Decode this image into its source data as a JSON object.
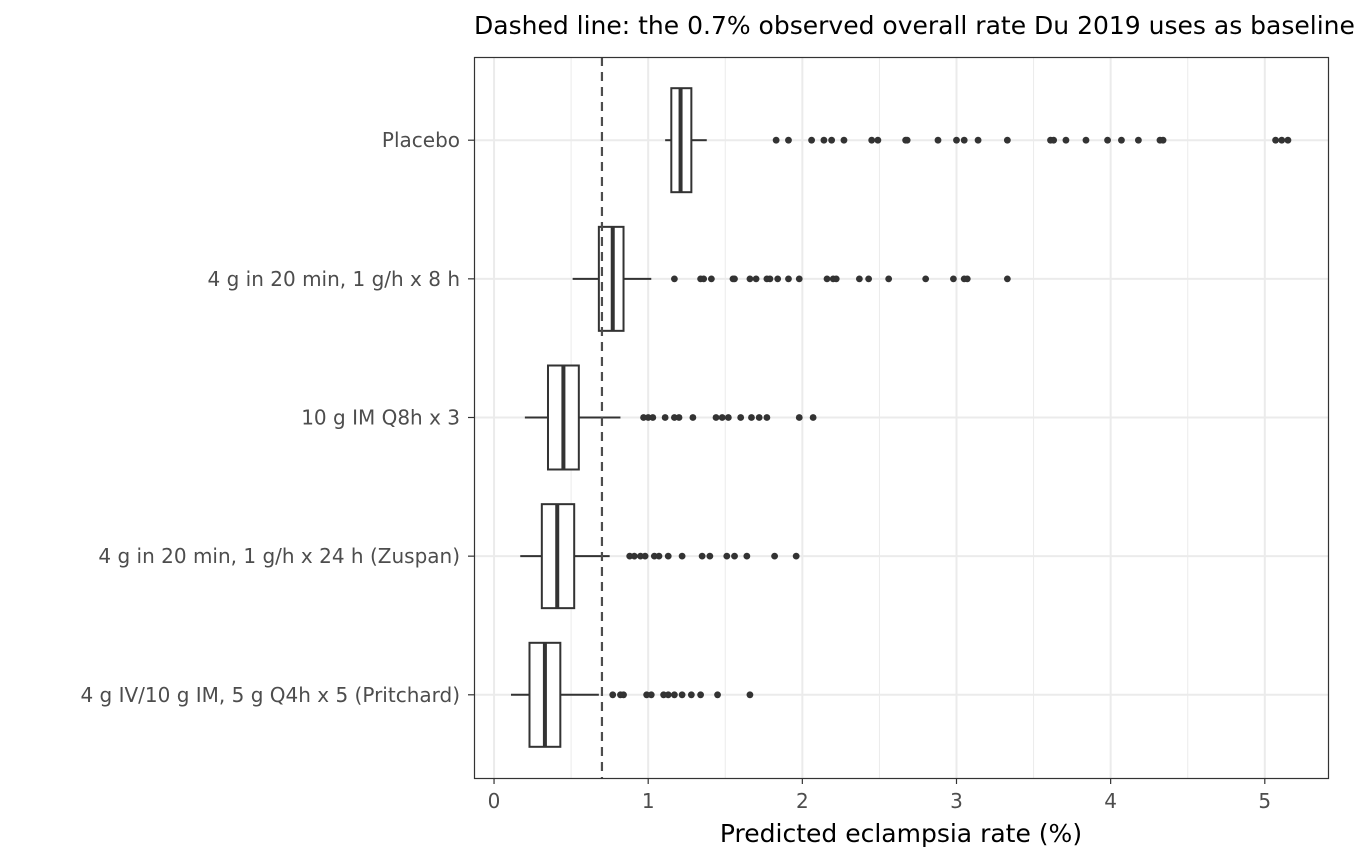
{
  "chart_data": {
    "type": "boxplot",
    "orientation": "horizontal",
    "title": "Dashed line: the 0.7% observed overall rate Du 2019 uses as baseline",
    "xlabel": "Predicted eclampsia rate (%)",
    "ylabel": "",
    "xlim": [
      -0.13,
      5.41
    ],
    "xticks": [
      0,
      1,
      2,
      3,
      4,
      5
    ],
    "reference_line": {
      "x": 0.7,
      "style": "dashed"
    },
    "grid": true,
    "colors": {
      "box_fill": "#ffffff",
      "box_stroke": "#333333",
      "outlier": "#333333",
      "grid": "#ebebeb",
      "reference": "#4d4d4d"
    },
    "categories": [
      "Placebo",
      "4 g in 20 min, 1 g/h x 8 h",
      "10 g IM Q8h x 3",
      "4 g in 20 min, 1 g/h x 24 h (Zuspan)",
      "4 g IV/10 g IM, 5 g Q4h x 5 (Pritchard)"
    ],
    "boxes": [
      {
        "category": "Placebo",
        "whisker_low": 1.11,
        "q1": 1.15,
        "median": 1.21,
        "q3": 1.28,
        "whisker_high": 1.38,
        "outliers": [
          1.83,
          1.91,
          2.06,
          2.14,
          2.19,
          2.27,
          2.45,
          2.49,
          2.67,
          2.68,
          2.88,
          3.0,
          3.05,
          3.14,
          3.33,
          3.61,
          3.63,
          3.71,
          3.84,
          3.98,
          4.07,
          4.18,
          4.32,
          4.34,
          5.07,
          5.11,
          5.15
        ]
      },
      {
        "category": "4 g in 20 min, 1 g/h x 8 h",
        "whisker_low": 0.51,
        "q1": 0.68,
        "median": 0.77,
        "q3": 0.84,
        "whisker_high": 1.02,
        "outliers": [
          1.17,
          1.34,
          1.36,
          1.41,
          1.55,
          1.56,
          1.66,
          1.7,
          1.77,
          1.79,
          1.84,
          1.91,
          1.98,
          2.16,
          2.2,
          2.22,
          2.37,
          2.43,
          2.56,
          2.8,
          2.98,
          3.05,
          3.07,
          3.33
        ]
      },
      {
        "category": "10 g IM Q8h x 3",
        "whisker_low": 0.2,
        "q1": 0.35,
        "median": 0.45,
        "q3": 0.55,
        "whisker_high": 0.82,
        "outliers": [
          0.97,
          1.0,
          1.03,
          1.11,
          1.17,
          1.2,
          1.29,
          1.44,
          1.48,
          1.52,
          1.6,
          1.67,
          1.72,
          1.77,
          1.98,
          2.07
        ]
      },
      {
        "category": "4 g in 20 min, 1 g/h x 24 h (Zuspan)",
        "whisker_low": 0.17,
        "q1": 0.31,
        "median": 0.41,
        "q3": 0.52,
        "whisker_high": 0.75,
        "outliers": [
          0.88,
          0.91,
          0.95,
          0.98,
          1.04,
          1.07,
          1.13,
          1.22,
          1.35,
          1.4,
          1.51,
          1.56,
          1.64,
          1.82,
          1.96
        ]
      },
      {
        "category": "4 g IV/10 g IM, 5 g Q4h x 5 (Pritchard)",
        "whisker_low": 0.11,
        "q1": 0.23,
        "median": 0.33,
        "q3": 0.43,
        "whisker_high": 0.68,
        "outliers": [
          0.77,
          0.82,
          0.84,
          0.99,
          1.02,
          1.1,
          1.13,
          1.17,
          1.22,
          1.28,
          1.34,
          1.45,
          1.66
        ]
      }
    ]
  }
}
